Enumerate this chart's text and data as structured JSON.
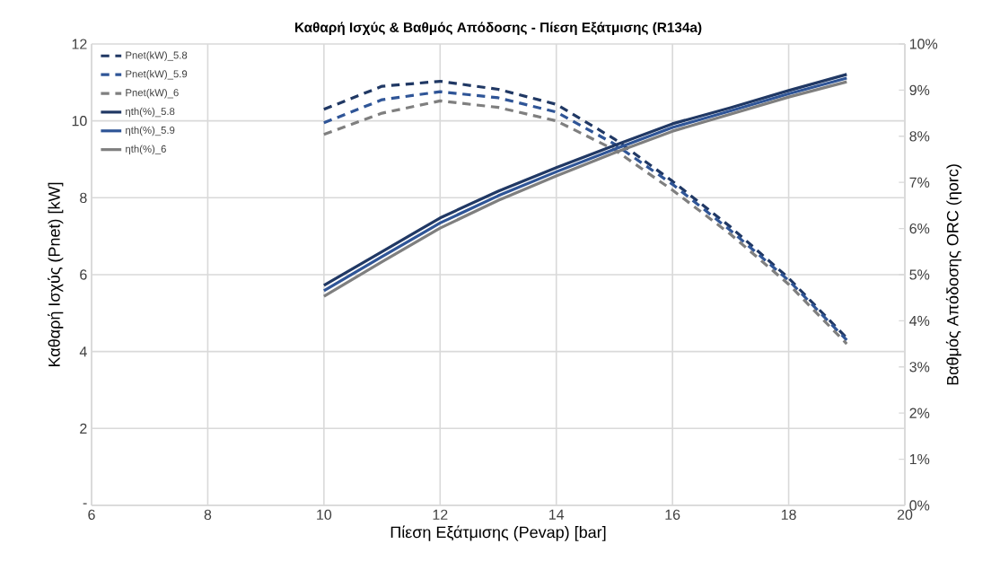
{
  "chart_data": {
    "type": "line",
    "title": "Καθαρή Ισχύς & Βαθμός Απόδοσης - Πίεση Εξάτμισης (R134a)",
    "xlabel": "Πίεση Εξάτμισης (Pevap) [bar]",
    "ylabel": "Καθαρή Ισχύς (Pnet) [kW]",
    "y2label": "Βαθμός Απόδοσης ORC (ηorc)",
    "x": [
      10,
      11,
      12,
      13,
      14,
      15,
      16,
      17,
      18,
      19
    ],
    "series": [
      {
        "name": "Pnet(kW)_5.8",
        "color": "#203864",
        "axis": "y",
        "line_style": "dashed",
        "values": [
          10.3,
          10.9,
          11.03,
          10.82,
          10.43,
          9.53,
          8.43,
          7.24,
          5.91,
          4.35
        ]
      },
      {
        "name": "Pnet(kW)_5.9",
        "color": "#2f5597",
        "axis": "y",
        "line_style": "dashed",
        "values": [
          9.95,
          10.55,
          10.76,
          10.6,
          10.23,
          9.4,
          8.35,
          7.15,
          5.85,
          4.3
        ]
      },
      {
        "name": "Pnet(kW)_6",
        "color": "#7f7f7f",
        "axis": "y",
        "line_style": "dashed",
        "values": [
          9.65,
          10.2,
          10.52,
          10.35,
          10.0,
          9.25,
          8.2,
          7.05,
          5.75,
          4.2
        ]
      },
      {
        "name": "ηth(%)_5.8",
        "color": "#203864",
        "axis": "y2",
        "line_style": "solid",
        "values": [
          4.77,
          5.5,
          6.23,
          6.81,
          7.32,
          7.8,
          8.27,
          8.62,
          8.99,
          9.34
        ]
      },
      {
        "name": "ηth(%)_5.9",
        "color": "#2f5597",
        "axis": "y2",
        "line_style": "solid",
        "values": [
          4.65,
          5.39,
          6.12,
          6.71,
          7.23,
          7.72,
          8.19,
          8.55,
          8.92,
          9.26
        ]
      },
      {
        "name": "ηth(%)_6",
        "color": "#7f7f7f",
        "axis": "y2",
        "line_style": "solid",
        "values": [
          4.53,
          5.28,
          6.01,
          6.61,
          7.14,
          7.64,
          8.11,
          8.48,
          8.85,
          9.18
        ]
      }
    ],
    "xlim": [
      6,
      20
    ],
    "xticks": [
      6,
      8,
      10,
      12,
      14,
      16,
      18,
      20
    ],
    "ylim": [
      0,
      12
    ],
    "yticks": [
      {
        "value": 0,
        "label": "-"
      },
      2,
      4,
      6,
      8,
      10,
      12
    ],
    "y2lim": [
      0,
      10
    ],
    "y2ticks": [
      {
        "value": 0,
        "label": "0%"
      },
      {
        "value": 1,
        "label": "1%"
      },
      {
        "value": 2,
        "label": "2%"
      },
      {
        "value": 3,
        "label": "3%"
      },
      {
        "value": 4,
        "label": "4%"
      },
      {
        "value": 5,
        "label": "5%"
      },
      {
        "value": 6,
        "label": "6%"
      },
      {
        "value": 7,
        "label": "7%"
      },
      {
        "value": 8,
        "label": "8%"
      },
      {
        "value": 9,
        "label": "9%"
      },
      {
        "value": 10,
        "label": "10%"
      }
    ],
    "grid": true,
    "legend": "top left",
    "marker": "none"
  }
}
